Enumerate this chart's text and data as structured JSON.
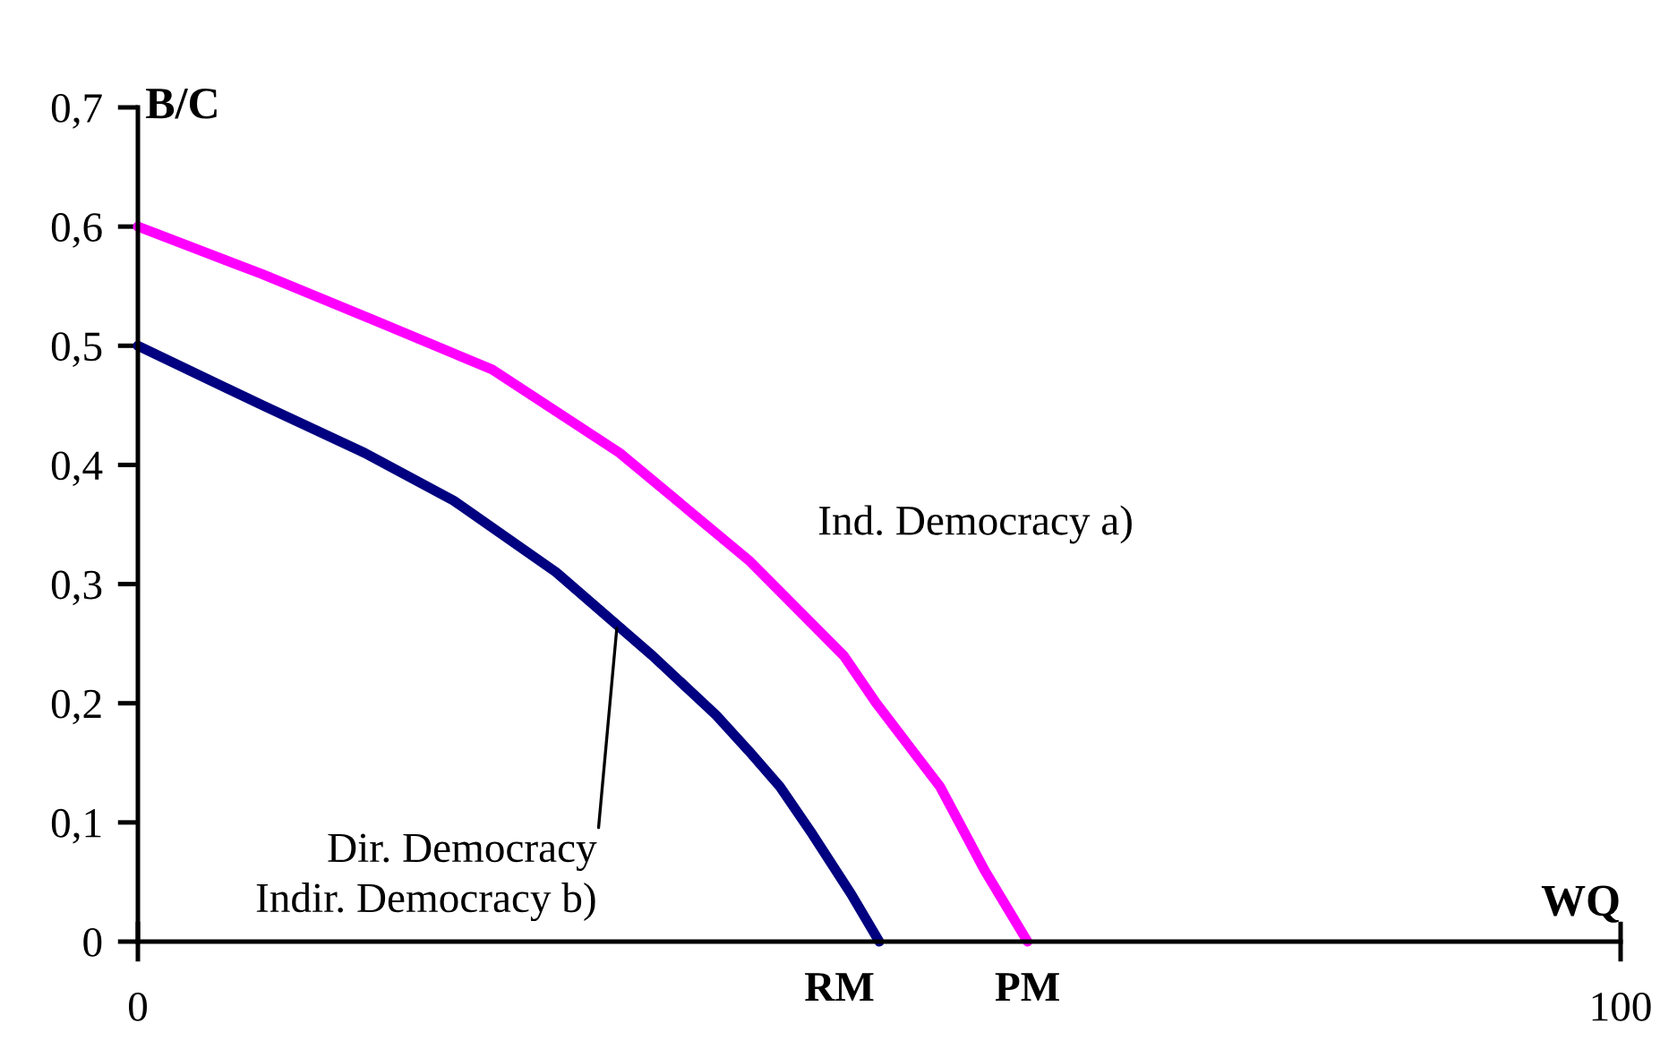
{
  "chart_data": {
    "type": "line",
    "xlabel": "WQ",
    "ylabel": "B/C",
    "series": [
      {
        "color": "#ff00ff",
        "x": [
          0,
          8.4,
          16.2,
          23.9,
          32.5,
          41.2,
          47.6,
          49.8,
          54.1,
          57.1,
          60
        ],
        "values": [
          0.6,
          0.56,
          0.52,
          0.48,
          0.41,
          0.32,
          0.24,
          0.2,
          0.13,
          0.06,
          0
        ]
      },
      {
        "color": "#000080",
        "x": [
          0,
          8.4,
          15.3,
          21.3,
          28.2,
          34.7,
          39,
          41.2,
          43.3,
          45.5,
          48.1,
          50
        ],
        "values": [
          0.5,
          0.45,
          0.41,
          0.37,
          0.31,
          0.24,
          0.19,
          0.16,
          0.13,
          0.09,
          0.04,
          0
        ]
      }
    ],
    "xlim": [
      0,
      100
    ],
    "ylim": [
      0,
      0.7
    ],
    "xticks": [
      0,
      100
    ],
    "yticks": [
      0,
      {
        "value": 0.1,
        "label": "0,1"
      },
      {
        "value": 0.2,
        "label": "0,2"
      },
      {
        "value": 0.3,
        "label": "0,3"
      },
      {
        "value": 0.4,
        "label": "0,4"
      },
      {
        "value": 0.5,
        "label": "0,5"
      },
      {
        "value": 0.6,
        "label": "0,6"
      },
      {
        "value": 0.7,
        "label": "0,7"
      }
    ],
    "grid": false,
    "legend": false,
    "marker": "none",
    "line_style": "solid",
    "annotations": [
      "Ind. Democracy a)",
      {
        "text": "Dir. Democracy\nIndir. Democracy b)",
        "x": 32.3,
        "y": 0.263
      },
      {
        "text": "RM",
        "x": 50,
        "y": 0
      },
      {
        "text": "PM",
        "x": 60,
        "y": 0
      }
    ]
  }
}
